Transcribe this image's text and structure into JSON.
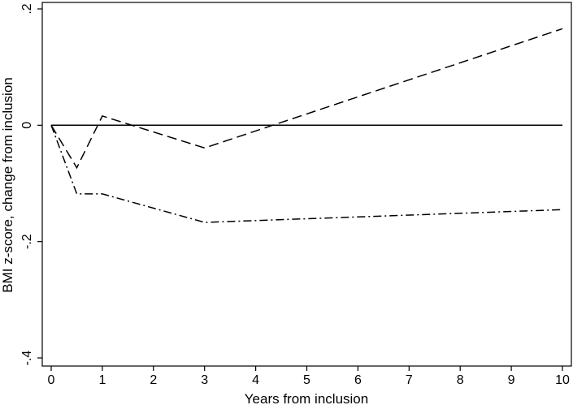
{
  "chart_data": {
    "type": "line",
    "title": "",
    "xlabel": "Years from inclusion",
    "ylabel": "BMI z-score, change from inclusion",
    "xlim": [
      0,
      10
    ],
    "ylim": [
      -0.4,
      0.2
    ],
    "x_ticks": [
      0,
      1,
      2,
      3,
      4,
      5,
      6,
      7,
      8,
      9,
      10
    ],
    "x_tick_labels": [
      "0",
      "1",
      "2",
      "3",
      "4",
      "5",
      "6",
      "7",
      "8",
      "9",
      "10"
    ],
    "y_ticks": [
      -0.4,
      -0.2,
      0,
      0.2
    ],
    "y_tick_labels": [
      "-.4",
      "-.2",
      "0",
      ".2"
    ],
    "grid": false,
    "legend": "none",
    "series": [
      {
        "style": "solid",
        "color": "#000000",
        "x": [
          0,
          10
        ],
        "y": [
          0,
          0
        ]
      },
      {
        "style": "dashed",
        "color": "#000000",
        "x": [
          0,
          0.5,
          1,
          3,
          10
        ],
        "y": [
          0,
          -0.073,
          0.016,
          -0.039,
          0.166
        ]
      },
      {
        "style": "dashdot",
        "color": "#000000",
        "x": [
          0,
          0.5,
          1,
          3,
          10
        ],
        "y": [
          0,
          -0.118,
          -0.118,
          -0.167,
          -0.145
        ]
      }
    ]
  }
}
